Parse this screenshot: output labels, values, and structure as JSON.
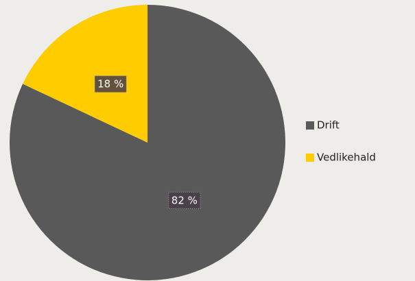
{
  "chart_data": {
    "type": "pie",
    "categories": [
      "Drift",
      "Vedlikehald"
    ],
    "values": [
      82,
      18
    ],
    "value_labels": [
      "82 %",
      "18 %"
    ],
    "colors": [
      "#595959",
      "#ffcc00"
    ],
    "legend": "right"
  }
}
